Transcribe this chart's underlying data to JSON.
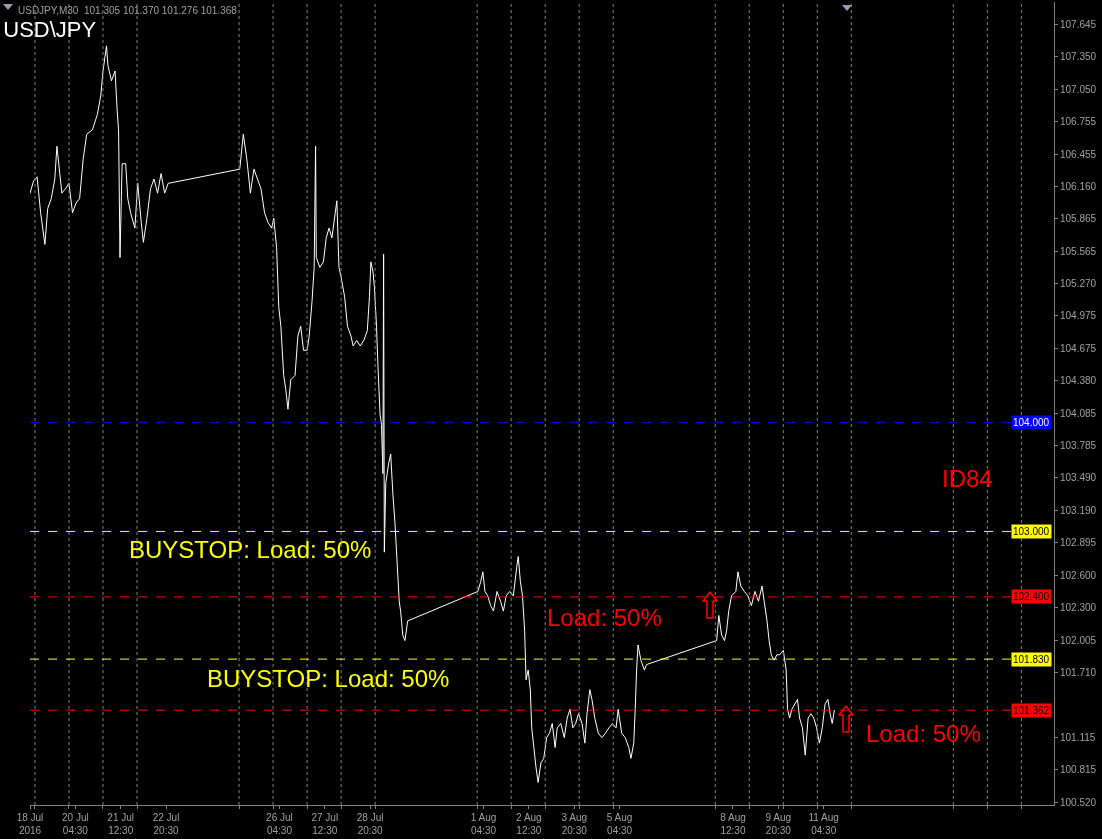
{
  "chart_data": {
    "type": "line",
    "title": "USD\\JPY",
    "subtitle": "USDJPY,M30  101.305 101.370 101.276 101.368",
    "x": [
      "2016-07-18T20:30",
      "2016-07-18T23:00",
      "2016-07-19T01:30",
      "2016-07-19T04:00",
      "2016-07-19T07:00",
      "2016-07-19T09:00",
      "2016-07-19T11:30",
      "2016-07-19T14:00",
      "2016-07-19T15:30",
      "2016-07-19T17:30",
      "2016-07-19T19:00",
      "2016-07-19T21:30",
      "2016-07-20T00:00",
      "2016-07-20T02:30",
      "2016-07-20T05:00",
      "2016-07-20T07:30",
      "2016-07-20T10:00",
      "2016-07-20T12:30",
      "2016-07-20T16:30",
      "2016-07-20T20:00",
      "2016-07-20T22:30",
      "2016-07-21T00:00",
      "2016-07-21T02:30",
      "2016-07-21T03:30",
      "2016-07-21T06:00",
      "2016-07-21T08:30",
      "2016-07-21T10:00",
      "2016-07-21T11:00",
      "2016-07-21T12:00",
      "2016-07-21T13:30",
      "2016-07-21T16:00",
      "2016-07-21T17:30",
      "2016-07-21T19:30",
      "2016-07-21T22:30",
      "2016-07-22T00:30",
      "2016-07-22T03:00",
      "2016-07-22T04:30",
      "2016-07-22T07:00",
      "2016-07-22T09:30",
      "2016-07-22T12:00",
      "2016-07-22T14:30",
      "2016-07-22T17:00",
      "2016-07-22T19:30",
      "2016-07-22T22:00",
      "2016-07-25T00:30",
      "2016-07-25T03:00",
      "2016-07-25T05:30",
      "2016-07-25T08:00",
      "2016-07-25T10:30",
      "2016-07-25T13:00",
      "2016-07-25T15:30",
      "2016-07-25T18:00",
      "2016-07-25T20:30",
      "2016-07-25T23:00",
      "2016-07-26T00:30",
      "2016-07-26T02:30",
      "2016-07-26T04:00",
      "2016-07-26T05:30",
      "2016-07-26T07:30",
      "2016-07-26T09:00",
      "2016-07-26T10:30",
      "2016-07-26T12:30",
      "2016-07-26T15:30",
      "2016-07-26T17:30",
      "2016-07-26T19:30",
      "2016-07-26T21:30",
      "2016-07-27T00:00",
      "2016-07-27T01:30",
      "2016-07-27T03:30",
      "2016-07-27T05:00",
      "2016-07-27T06:00",
      "2016-07-27T06:30",
      "2016-07-27T09:00",
      "2016-07-27T11:30",
      "2016-07-27T13:30",
      "2016-07-27T15:30",
      "2016-07-27T17:30",
      "2016-07-27T21:00",
      "2016-07-27T22:30",
      "2016-07-28T00:00",
      "2016-07-28T02:30",
      "2016-07-28T04:30",
      "2016-07-28T07:00",
      "2016-07-28T08:30",
      "2016-07-28T11:00",
      "2016-07-28T13:30",
      "2016-07-28T16:00",
      "2016-07-28T18:30",
      "2016-07-28T20:00",
      "2016-07-28T21:00",
      "2016-07-28T22:30",
      "2016-07-28T23:30",
      "2016-07-29T01:00",
      "2016-07-29T02:00",
      "2016-07-29T03:30",
      "2016-07-29T04:30",
      "2016-07-29T05:30",
      "2016-07-29T06:00",
      "2016-07-29T06:30",
      "2016-07-29T07:30",
      "2016-07-29T09:30",
      "2016-07-29T11:00",
      "2016-07-29T12:30",
      "2016-07-29T14:00",
      "2016-07-29T15:30",
      "2016-07-29T17:00",
      "2016-07-29T18:00",
      "2016-07-29T19:30",
      "2016-07-29T21:00",
      "2016-07-29T23:00",
      "2016-08-01T00:30",
      "2016-08-01T02:30",
      "2016-08-01T04:00",
      "2016-08-01T05:30",
      "2016-08-01T07:30",
      "2016-08-01T09:30",
      "2016-08-01T11:30",
      "2016-08-01T14:00",
      "2016-08-01T16:30",
      "2016-08-01T18:30",
      "2016-08-01T20:30",
      "2016-08-01T23:00",
      "2016-08-02T01:30",
      "2016-08-02T04:00",
      "2016-08-02T05:00",
      "2016-08-02T06:30",
      "2016-08-02T08:00",
      "2016-08-02T09:30",
      "2016-08-02T10:30",
      "2016-08-02T12:00",
      "2016-08-02T13:30",
      "2016-08-02T14:30",
      "2016-08-02T16:00",
      "2016-08-02T17:30",
      "2016-08-02T19:00",
      "2016-08-02T21:00",
      "2016-08-02T23:00",
      "2016-08-03T01:00",
      "2016-08-03T03:00",
      "2016-08-03T05:00",
      "2016-08-03T07:00",
      "2016-08-03T08:30",
      "2016-08-03T11:00",
      "2016-08-03T13:30",
      "2016-08-03T15:30",
      "2016-08-03T17:30",
      "2016-08-03T19:30",
      "2016-08-03T21:30",
      "2016-08-03T23:30",
      "2016-08-04T02:00",
      "2016-08-04T04:00",
      "2016-08-04T05:30",
      "2016-08-04T07:30",
      "2016-08-04T09:00",
      "2016-08-04T11:00",
      "2016-08-04T13:30",
      "2016-08-04T16:00",
      "2016-08-04T18:30",
      "2016-08-04T21:00",
      "2016-08-04T23:30",
      "2016-08-05T02:00",
      "2016-08-05T03:30",
      "2016-08-05T06:00",
      "2016-08-05T08:30",
      "2016-08-05T11:00",
      "2016-08-05T12:30",
      "2016-08-05T14:30",
      "2016-08-05T15:30",
      "2016-08-05T16:30",
      "2016-08-05T17:30",
      "2016-08-05T19:30",
      "2016-08-05T22:00",
      "2016-08-05T23:30",
      "2016-08-08T01:00",
      "2016-08-08T02:30",
      "2016-08-08T04:30",
      "2016-08-08T06:30",
      "2016-08-08T08:00",
      "2016-08-08T09:30",
      "2016-08-08T11:30",
      "2016-08-08T14:30",
      "2016-08-08T16:00",
      "2016-08-08T18:00",
      "2016-08-08T20:30",
      "2016-08-08T23:00",
      "2016-08-09T01:30",
      "2016-08-09T04:00",
      "2016-08-09T06:30",
      "2016-08-09T09:00",
      "2016-08-09T10:30",
      "2016-08-09T12:30",
      "2016-08-09T14:00",
      "2016-08-09T15:30",
      "2016-08-09T17:30",
      "2016-08-09T19:30",
      "2016-08-09T21:30",
      "2016-08-10T00:00",
      "2016-08-10T02:00",
      "2016-08-10T03:00",
      "2016-08-10T04:30",
      "2016-08-10T06:00",
      "2016-08-10T10:00",
      "2016-08-10T11:30",
      "2016-08-10T13:30",
      "2016-08-10T15:30",
      "2016-08-10T17:30",
      "2016-08-10T19:30",
      "2016-08-10T21:30",
      "2016-08-10T23:30",
      "2016-08-11T01:30",
      "2016-08-11T03:30",
      "2016-08-11T05:30",
      "2016-08-11T07:30",
      "2016-08-11T09:00",
      "2016-08-11T10:30",
      "2016-08-11T12:00"
    ],
    "series": [
      {
        "color": "#ffffff",
        "values": [
          106.1,
          106.21,
          106.25,
          105.92,
          105.63,
          105.96,
          106.05,
          106.23,
          106.53,
          106.28,
          106.1,
          106.14,
          106.19,
          105.92,
          106.01,
          106.05,
          106.41,
          106.64,
          106.68,
          106.82,
          107.0,
          107.22,
          107.45,
          107.27,
          107.13,
          107.22,
          106.86,
          106.68,
          105.51,
          106.37,
          106.37,
          106.05,
          105.92,
          105.78,
          106.19,
          105.83,
          105.65,
          105.87,
          106.14,
          106.23,
          106.1,
          106.28,
          106.1,
          106.19,
          106.32,
          106.64,
          106.41,
          106.1,
          106.32,
          106.23,
          106.14,
          105.92,
          105.83,
          105.78,
          105.87,
          105.6,
          105.06,
          104.88,
          104.43,
          104.3,
          104.12,
          104.39,
          104.43,
          104.79,
          104.88,
          104.66,
          104.66,
          104.79,
          105.11,
          105.42,
          106.53,
          105.51,
          105.42,
          105.47,
          105.69,
          105.78,
          105.69,
          106.03,
          105.42,
          105.33,
          105.15,
          104.88,
          104.79,
          104.7,
          104.75,
          104.7,
          104.75,
          104.84,
          105.15,
          105.47,
          105.38,
          105.24,
          104.88,
          104.52,
          104.07,
          103.98,
          103.53,
          105.54,
          102.81,
          103.44,
          103.62,
          103.71,
          103.35,
          103.08,
          102.72,
          102.36,
          102.27,
          102.05,
          102.0,
          102.18,
          102.45,
          102.54,
          102.63,
          102.45,
          102.41,
          102.32,
          102.27,
          102.45,
          102.36,
          102.27,
          102.41,
          102.45,
          102.41,
          102.68,
          102.77,
          102.54,
          102.41,
          102.09,
          101.64,
          101.73,
          101.55,
          101.2,
          101.02,
          100.84,
          100.7,
          100.88,
          100.92,
          101.11,
          101.15,
          101.24,
          101.02,
          101.2,
          101.24,
          101.11,
          101.29,
          101.37,
          101.2,
          101.24,
          101.33,
          101.24,
          101.06,
          101.33,
          101.55,
          101.46,
          101.29,
          101.15,
          101.11,
          101.15,
          101.2,
          101.24,
          101.2,
          101.37,
          101.15,
          101.11,
          101.02,
          100.92,
          101.06,
          101.37,
          101.73,
          101.96,
          101.82,
          101.73,
          101.78,
          102.0,
          102.23,
          102.05,
          102.0,
          102.09,
          102.27,
          102.41,
          102.45,
          102.63,
          102.5,
          102.45,
          102.41,
          102.32,
          102.45,
          102.36,
          102.5,
          102.36,
          102.18,
          102.0,
          101.87,
          101.82,
          101.87,
          101.87,
          101.91,
          101.73,
          101.37,
          101.29,
          101.37,
          101.46,
          101.29,
          101.2,
          100.95,
          101.29,
          101.33,
          101.29,
          101.2,
          101.06,
          101.2,
          101.42,
          101.46,
          101.33,
          101.24,
          101.36
        ]
      }
    ],
    "xlim": [
      "2016-07-18T20:30",
      "2016-08-17T23:00"
    ],
    "xticks": [
      {
        "value": "2016-07-18T20:30",
        "label": "18 Jul 2016"
      },
      {
        "value": "2016-07-20T04:30",
        "label": "20 Jul 04:30"
      },
      {
        "value": "2016-07-21T12:30",
        "label": "21 Jul 12:30"
      },
      {
        "value": "2016-07-22T20:30",
        "label": "22 Jul 20:30"
      },
      {
        "value": "2016-07-26T04:30",
        "label": "26 Jul 04:30"
      },
      {
        "value": "2016-07-27T12:30",
        "label": "27 Jul 12:30"
      },
      {
        "value": "2016-07-28T20:30",
        "label": "28 Jul 20:30"
      },
      {
        "value": "2016-08-01T04:30",
        "label": "1 Aug 04:30"
      },
      {
        "value": "2016-08-02T12:30",
        "label": "2 Aug 12:30"
      },
      {
        "value": "2016-08-03T20:30",
        "label": "3 Aug 20:30"
      },
      {
        "value": "2016-08-05T04:30",
        "label": "5 Aug 04:30"
      },
      {
        "value": "2016-08-08T12:30",
        "label": "8 Aug 12:30"
      },
      {
        "value": "2016-08-09T20:30",
        "label": "9 Aug 20:30"
      },
      {
        "value": "2016-08-11T04:30",
        "label": "11 Aug 04:30"
      },
      {
        "value": "2016-07-19",
        "label": null
      },
      {
        "value": "2016-07-20",
        "label": null
      },
      {
        "value": "2016-07-21",
        "label": null
      },
      {
        "value": "2016-07-22",
        "label": null
      },
      {
        "value": "2016-07-25",
        "label": null
      },
      {
        "value": "2016-07-26",
        "label": null
      },
      {
        "value": "2016-07-27",
        "label": null
      },
      {
        "value": "2016-07-28",
        "label": null
      },
      {
        "value": "2016-07-29",
        "label": null
      },
      {
        "value": "2016-08-01",
        "label": null
      },
      {
        "value": "2016-08-02",
        "label": null
      },
      {
        "value": "2016-08-03",
        "label": null
      },
      {
        "value": "2016-08-04",
        "label": null
      },
      {
        "value": "2016-08-05",
        "label": null
      },
      {
        "value": "2016-08-08",
        "label": null
      },
      {
        "value": "2016-08-09",
        "label": null
      },
      {
        "value": "2016-08-10",
        "label": null
      },
      {
        "value": "2016-08-11",
        "label": null
      },
      {
        "value": "2016-08-12",
        "label": null
      },
      {
        "value": "2016-08-15",
        "label": null
      },
      {
        "value": "2016-08-16",
        "label": null
      },
      {
        "value": "2016-08-17",
        "label": null
      }
    ],
    "ylim": [
      100.493,
      107.852
    ],
    "yticks": [
      {
        "value": 107.645,
        "label": "107.645"
      },
      {
        "value": 107.35,
        "label": "107.350"
      },
      {
        "value": 107.05,
        "label": "107.050"
      },
      {
        "value": 106.755,
        "label": "106.755"
      },
      {
        "value": 106.455,
        "label": "106.455"
      },
      {
        "value": 106.16,
        "label": "106.160"
      },
      {
        "value": 105.865,
        "label": "105.865"
      },
      {
        "value": 105.565,
        "label": "105.565"
      },
      {
        "value": 105.27,
        "label": "105.270"
      },
      {
        "value": 104.975,
        "label": "104.975"
      },
      {
        "value": 104.675,
        "label": "104.675"
      },
      {
        "value": 104.38,
        "label": "104.380"
      },
      {
        "value": 104.085,
        "label": "104.085"
      },
      {
        "value": 103.785,
        "label": "103.785"
      },
      {
        "value": 103.49,
        "label": "103.490"
      },
      {
        "value": 103.19,
        "label": "103.190"
      },
      {
        "value": 102.895,
        "label": "102.895"
      },
      {
        "value": 102.6,
        "label": "102.600"
      },
      {
        "value": 102.3,
        "label": "102.300"
      },
      {
        "value": 102.005,
        "label": "102.005"
      },
      {
        "value": 101.71,
        "label": "101.710"
      },
      {
        "value": 101.115,
        "label": "101.115"
      },
      {
        "value": 100.815,
        "label": "100.815"
      },
      {
        "value": 100.52,
        "label": "100.520"
      }
    ],
    "ref_lines": [
      {
        "axis": "y",
        "value": 104.0,
        "label": "104.000",
        "color": "#0000ff",
        "line_style": "dashed"
      },
      {
        "axis": "y",
        "value": 103.0,
        "label": "103.000",
        "color": "#ffff00",
        "line_style": "dashed"
      },
      {
        "axis": "y",
        "value": 102.4,
        "label": "102.400",
        "color": "#ff0000",
        "line_style": "dashed"
      },
      {
        "axis": "y",
        "value": 101.83,
        "label": "101.830",
        "color": "#ffff00",
        "line_style": "dashed"
      },
      {
        "axis": "y",
        "value": 101.362,
        "label": "101.362",
        "color": "#ff0000",
        "line_style": "dashed"
      }
    ],
    "annotations": [
      "ID84",
      "BUYSTOP: Load: 50%",
      "Load: 50%",
      "BUYSTOP: Load: 50%",
      "Load: 50%"
    ],
    "grid": "x"
  }
}
